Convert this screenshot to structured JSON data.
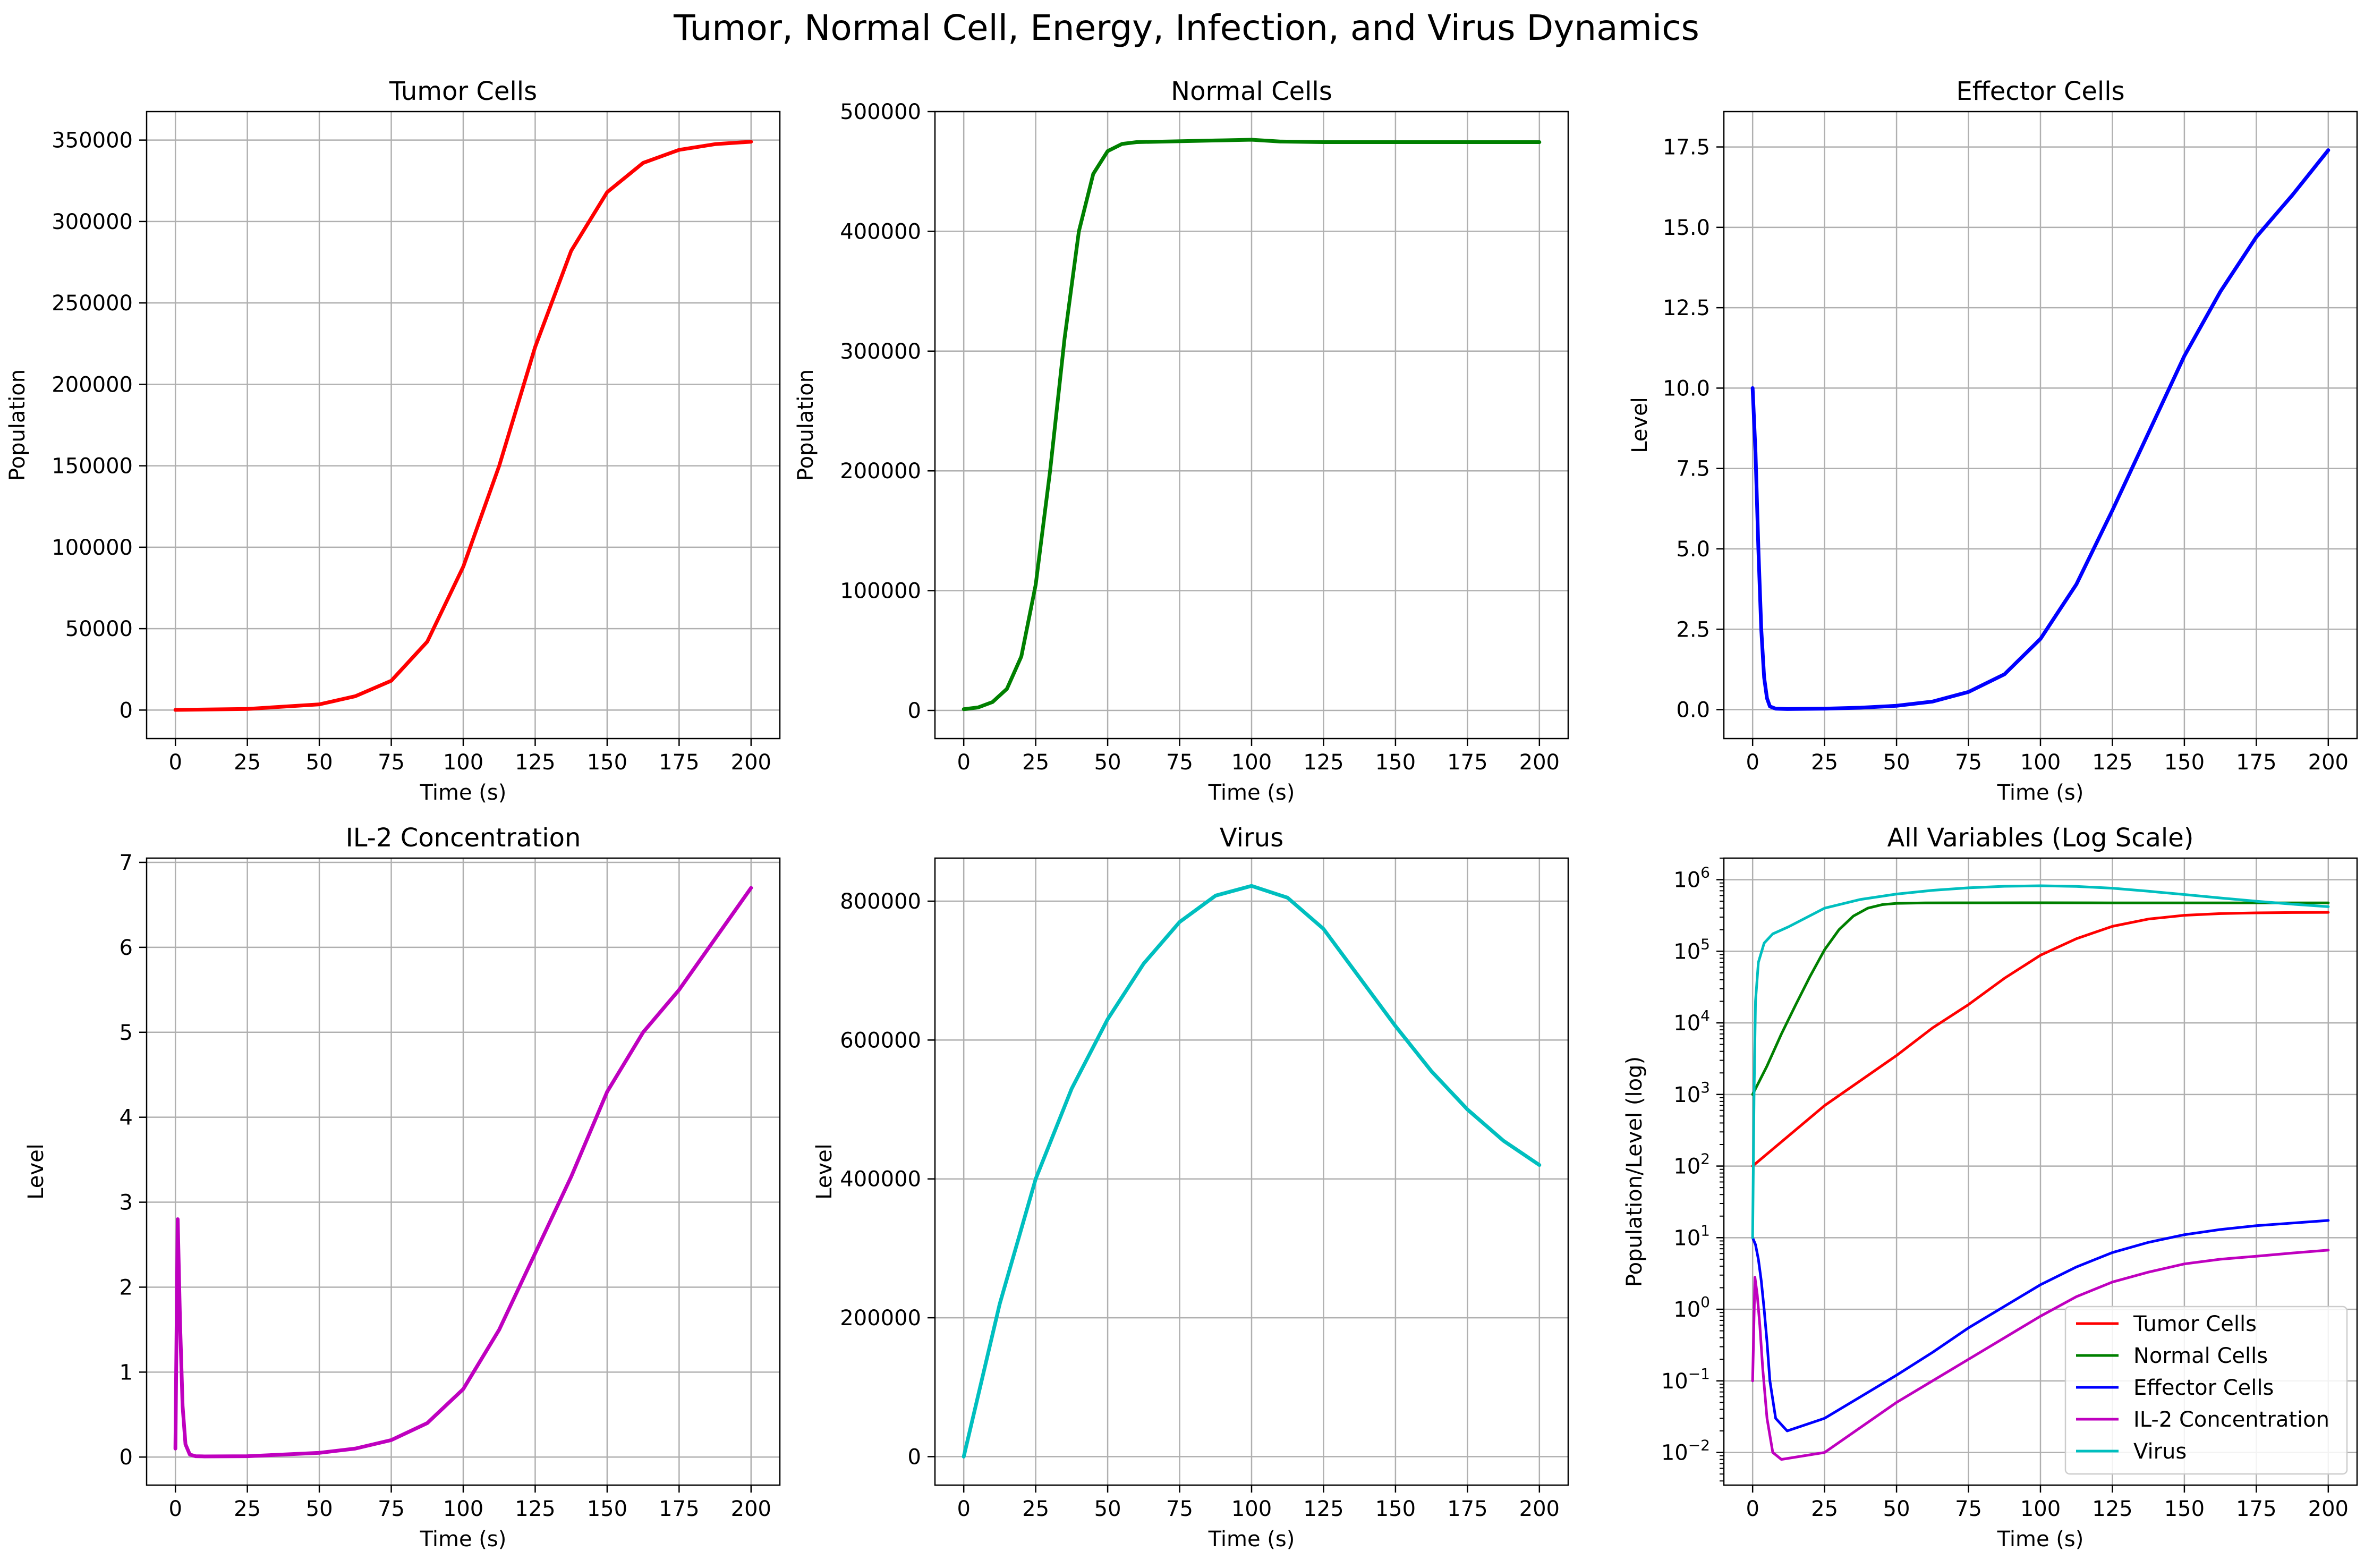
{
  "figure": {
    "title": "Tumor, Normal Cell, Energy, Infection, and Virus Dynamics"
  },
  "colors": {
    "tumor": "#ff0000",
    "normal": "#008000",
    "effector": "#0000ff",
    "il2": "#bf00bf",
    "virus": "#00bfbf",
    "grid": "#b0b0b0"
  },
  "chart_data": [
    {
      "id": "tumor",
      "type": "line",
      "title": "Tumor Cells",
      "xlabel": "Time (s)",
      "ylabel": "Population",
      "xlim": [
        -10,
        210
      ],
      "ylim": [
        -17500,
        367500
      ],
      "xticks": [
        0,
        25,
        50,
        75,
        100,
        125,
        150,
        175,
        200
      ],
      "yticks": [
        0,
        50000,
        100000,
        150000,
        200000,
        250000,
        300000,
        350000
      ],
      "ytick_labels": [
        "0",
        "50000",
        "100000",
        "150000",
        "200000",
        "250000",
        "300000",
        "350000"
      ],
      "grid": true,
      "series": [
        {
          "color_key": "tumor",
          "x": [
            0,
            25,
            50,
            62.5,
            75,
            87.5,
            100,
            112.5,
            125,
            137.5,
            150,
            162.5,
            175,
            187.5,
            200
          ],
          "y": [
            100,
            700,
            3500,
            8500,
            18000,
            42000,
            88000,
            150000,
            223000,
            282000,
            318000,
            336000,
            344000,
            347500,
            349000
          ]
        }
      ]
    },
    {
      "id": "normal",
      "type": "line",
      "title": "Normal Cells",
      "xlabel": "Time (s)",
      "ylabel": "Population",
      "xlim": [
        -10,
        210
      ],
      "ylim": [
        -23500,
        500000
      ],
      "xticks": [
        0,
        25,
        50,
        75,
        100,
        125,
        150,
        175,
        200
      ],
      "yticks": [
        0,
        100000,
        200000,
        300000,
        400000,
        500000
      ],
      "ytick_labels": [
        "0",
        "100000",
        "200000",
        "300000",
        "400000",
        "500000"
      ],
      "grid": true,
      "series": [
        {
          "color_key": "normal",
          "x": [
            0,
            5,
            10,
            15,
            20,
            25,
            30,
            35,
            40,
            45,
            50,
            55,
            60,
            70,
            80,
            90,
            100,
            110,
            125,
            150,
            175,
            200
          ],
          "y": [
            1000,
            2500,
            7000,
            18000,
            45000,
            105000,
            200000,
            310000,
            400000,
            448000,
            467000,
            473000,
            474500,
            475000,
            475500,
            476000,
            476500,
            475000,
            474500,
            474500,
            474500,
            474500
          ]
        }
      ]
    },
    {
      "id": "effector",
      "type": "line",
      "title": "Effector Cells",
      "xlabel": "Time (s)",
      "ylabel": "Level",
      "xlim": [
        -10,
        210
      ],
      "ylim": [
        -0.9,
        18.6
      ],
      "xticks": [
        0,
        25,
        50,
        75,
        100,
        125,
        150,
        175,
        200
      ],
      "yticks": [
        0,
        2.5,
        5,
        7.5,
        10,
        12.5,
        15,
        17.5
      ],
      "ytick_labels": [
        "0.0",
        "2.5",
        "5.0",
        "7.5",
        "10.0",
        "12.5",
        "15.0",
        "17.5"
      ],
      "grid": true,
      "series": [
        {
          "color_key": "effector",
          "x": [
            0,
            1,
            2,
            3,
            4,
            5,
            6,
            8,
            12,
            25,
            37.5,
            50,
            62.5,
            75,
            87.5,
            100,
            112.5,
            125,
            137.5,
            150,
            162.5,
            175,
            187.5,
            200
          ],
          "y": [
            10,
            8,
            5,
            2.5,
            1,
            0.35,
            0.1,
            0.03,
            0.02,
            0.03,
            0.06,
            0.12,
            0.25,
            0.55,
            1.1,
            2.2,
            3.9,
            6.2,
            8.6,
            11.0,
            13.0,
            14.7,
            16.0,
            17.4
          ]
        }
      ]
    },
    {
      "id": "il2",
      "type": "line",
      "title": "IL-2 Concentration",
      "xlabel": "Time (s)",
      "ylabel": "Level",
      "xlim": [
        -10,
        210
      ],
      "ylim": [
        -0.33,
        7.05
      ],
      "xticks": [
        0,
        25,
        50,
        75,
        100,
        125,
        150,
        175,
        200
      ],
      "yticks": [
        0,
        1,
        2,
        3,
        4,
        5,
        6,
        7
      ],
      "ytick_labels": [
        "0",
        "1",
        "2",
        "3",
        "4",
        "5",
        "6",
        "7"
      ],
      "grid": true,
      "series": [
        {
          "color_key": "il2",
          "x": [
            0,
            0.8,
            1.6,
            2.5,
            3.5,
            5,
            7,
            10,
            25,
            50,
            62.5,
            75,
            87.5,
            100,
            112.5,
            125,
            137.5,
            150,
            162.5,
            175,
            187.5,
            200
          ],
          "y": [
            0.1,
            2.8,
            1.6,
            0.6,
            0.15,
            0.03,
            0.01,
            0.008,
            0.01,
            0.05,
            0.1,
            0.2,
            0.4,
            0.8,
            1.5,
            2.4,
            3.3,
            4.3,
            5.0,
            5.5,
            6.1,
            6.7
          ]
        }
      ]
    },
    {
      "id": "virus",
      "type": "line",
      "title": "Virus",
      "xlabel": "Time (s)",
      "ylabel": "Level",
      "xlim": [
        -10,
        210
      ],
      "ylim": [
        -41000,
        862000
      ],
      "xticks": [
        0,
        25,
        50,
        75,
        100,
        125,
        150,
        175,
        200
      ],
      "yticks": [
        0,
        200000,
        400000,
        600000,
        800000
      ],
      "ytick_labels": [
        "0",
        "200000",
        "400000",
        "600000",
        "800000"
      ],
      "grid": true,
      "series": [
        {
          "color_key": "virus",
          "x": [
            0,
            12.5,
            25,
            37.5,
            50,
            62.5,
            75,
            87.5,
            100,
            112.5,
            125,
            137.5,
            150,
            162.5,
            175,
            187.5,
            200
          ],
          "y": [
            0,
            220000,
            400000,
            530000,
            630000,
            710000,
            770000,
            808000,
            822000,
            805000,
            760000,
            690000,
            620000,
            555000,
            500000,
            455000,
            420000
          ]
        }
      ]
    },
    {
      "id": "all",
      "type": "line",
      "scale": "log",
      "title": "All Variables (Log Scale)",
      "xlabel": "Time (s)",
      "ylabel": "Population/Level (log)",
      "xlim": [
        -10,
        210
      ],
      "ylim": [
        0.0035,
        2000000
      ],
      "xticks": [
        0,
        25,
        50,
        75,
        100,
        125,
        150,
        175,
        200
      ],
      "yticks": [
        0.01,
        0.1,
        1,
        10,
        100,
        1000,
        10000,
        100000,
        1000000
      ],
      "ytick_base": "10",
      "ytick_exponents": [
        "−2",
        "−1",
        "0",
        "1",
        "2",
        "3",
        "4",
        "5",
        "6"
      ],
      "grid": true,
      "legend_position": "lower-right",
      "series": [
        {
          "name": "Tumor Cells",
          "color_key": "tumor",
          "x": [
            0,
            25,
            50,
            62.5,
            75,
            87.5,
            100,
            112.5,
            125,
            137.5,
            150,
            162.5,
            175,
            187.5,
            200
          ],
          "y": [
            100,
            700,
            3500,
            8500,
            18000,
            42000,
            88000,
            150000,
            223000,
            282000,
            318000,
            336000,
            344000,
            347500,
            349000
          ]
        },
        {
          "name": "Normal Cells",
          "color_key": "normal",
          "x": [
            0,
            5,
            10,
            15,
            20,
            25,
            30,
            35,
            40,
            45,
            50,
            60,
            80,
            100,
            125,
            150,
            175,
            200
          ],
          "y": [
            1000,
            2500,
            7000,
            18000,
            45000,
            105000,
            200000,
            310000,
            400000,
            448000,
            467000,
            474500,
            475500,
            476500,
            474500,
            474500,
            474500,
            474500
          ]
        },
        {
          "name": "Effector Cells",
          "color_key": "effector",
          "x": [
            0,
            1,
            2,
            3,
            4,
            5,
            6,
            8,
            12,
            25,
            37.5,
            50,
            62.5,
            75,
            87.5,
            100,
            112.5,
            125,
            137.5,
            150,
            162.5,
            175,
            187.5,
            200
          ],
          "y": [
            10,
            8,
            5,
            2.5,
            1,
            0.35,
            0.1,
            0.03,
            0.02,
            0.03,
            0.06,
            0.12,
            0.25,
            0.55,
            1.1,
            2.2,
            3.9,
            6.2,
            8.6,
            11.0,
            13.0,
            14.7,
            16.0,
            17.4
          ]
        },
        {
          "name": "IL-2 Concentration",
          "color_key": "il2",
          "x": [
            0,
            0.8,
            1.6,
            2.5,
            3.5,
            5,
            7,
            10,
            25,
            50,
            62.5,
            75,
            87.5,
            100,
            112.5,
            125,
            137.5,
            150,
            162.5,
            175,
            187.5,
            200
          ],
          "y": [
            0.1,
            2.8,
            1.6,
            0.6,
            0.15,
            0.03,
            0.01,
            0.008,
            0.01,
            0.05,
            0.1,
            0.2,
            0.4,
            0.8,
            1.5,
            2.4,
            3.3,
            4.3,
            5.0,
            5.5,
            6.1,
            6.7
          ]
        },
        {
          "name": "Virus",
          "color_key": "virus",
          "x": [
            0,
            0.5,
            1,
            2,
            4,
            7,
            12.5,
            25,
            37.5,
            50,
            62.5,
            75,
            87.5,
            100,
            112.5,
            125,
            137.5,
            150,
            162.5,
            175,
            187.5,
            200
          ],
          "y": [
            10,
            1000,
            20000,
            70000,
            130000,
            175000,
            220000,
            400000,
            530000,
            630000,
            710000,
            770000,
            808000,
            822000,
            805000,
            760000,
            690000,
            620000,
            555000,
            500000,
            455000,
            420000
          ]
        }
      ]
    }
  ]
}
